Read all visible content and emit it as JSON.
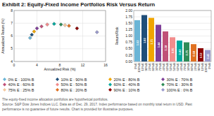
{
  "chart_data": [
    {
      "type": "scatter",
      "title": "Exhibit 2: Equity-Fixed Income Portfolios Risk Versus Return",
      "xlabel": "Annualized Risk (%)",
      "ylabel": "Annualized Return (%)",
      "xlim": [
        0,
        16
      ],
      "ylim": [
        4,
        8
      ],
      "xticks": [
        0,
        4,
        8,
        12,
        16
      ],
      "yticks": [
        4,
        5,
        6,
        7,
        8
      ],
      "grid": true,
      "legend": "bottom",
      "marker": "diamond",
      "series": [
        {
          "name": "0% E : 100% B",
          "color": "#6bb5d6",
          "x": [
            2.8
          ],
          "values": [
            5.85
          ]
        },
        {
          "name": "10% E : 90% B",
          "color": "#1f4e79",
          "x": [
            3.1
          ],
          "values": [
            6.1
          ]
        },
        {
          "name": "20% E : 80% B",
          "color": "#f0a500",
          "x": [
            3.5
          ],
          "values": [
            6.35
          ]
        },
        {
          "name": "30% E : 70% B",
          "color": "#7f3f98",
          "x": [
            4.0
          ],
          "values": [
            6.6
          ]
        },
        {
          "name": "40% E : 60% B",
          "color": "#c05078",
          "x": [
            4.8
          ],
          "values": [
            6.75
          ]
        },
        {
          "name": "50% E : 50% B",
          "color": "#f28c8c",
          "x": [
            5.8
          ],
          "values": [
            6.9
          ]
        },
        {
          "name": "60% E : 40% B",
          "color": "#00a89d",
          "x": [
            7.0
          ],
          "values": [
            6.95
          ]
        },
        {
          "name": "70% E : 30% B",
          "color": "#2e8b57",
          "x": [
            8.2
          ],
          "values": [
            6.9
          ]
        },
        {
          "name": "75% E : 25% B",
          "color": "#f4c8a0",
          "x": [
            8.9
          ],
          "values": [
            6.85
          ]
        },
        {
          "name": "80% E : 20% B",
          "color": "#e07020",
          "x": [
            9.6
          ],
          "values": [
            6.8
          ]
        },
        {
          "name": "90% E : 10% B",
          "color": "#8b0000",
          "x": [
            11.0
          ],
          "values": [
            6.6
          ]
        },
        {
          "name": "100% E : 0% B",
          "color": "#9999cc",
          "x": [
            14.5
          ],
          "values": [
            6.3
          ]
        }
      ],
      "annotations": [
        "The equity-fixed income allocation portfolios are hypothetical portfolios.",
        "Source: S&P Dow Jones Indices LLC. Data as of Dec. 29, 2017. Index performance based on monthly total return in USD. Past",
        "performance is no guarantee of future results. Chart is provided for illustrative purposes."
      ]
    },
    {
      "type": "bar",
      "ylabel": "Return/Risk",
      "categories": [
        "0%E\n100%B",
        "10%E\n90%B",
        "20%E\n80%B",
        "30%E\n70%B",
        "40%E\n60%B",
        "50%E\n50%B",
        "60%E\n40%B",
        "70%E\n30%B",
        "80%E\n20%B",
        "90%E\n10%B",
        "100%E\n0%B"
      ],
      "values": [
        1.62,
        1.82,
        1.71,
        1.44,
        1.18,
        0.95,
        0.82,
        0.75,
        0.68,
        0.52,
        0.45
      ],
      "colors": [
        "#6bb5d6",
        "#1f4e79",
        "#f0a500",
        "#7f3f98",
        "#c05078",
        "#f28c8c",
        "#00a89d",
        "#2e8b57",
        "#e07020",
        "#8b0000",
        "#9999cc"
      ],
      "ylim": [
        0.0,
        2.0
      ],
      "yticks": [
        {
          "value": 0.0,
          "label": "0.00"
        },
        {
          "value": 0.25,
          "label": "0.25"
        },
        {
          "value": 0.5,
          "label": "0.50"
        },
        {
          "value": 0.75,
          "label": "0.75"
        },
        {
          "value": 1.0,
          "label": "1.00"
        },
        {
          "value": 1.25,
          "label": "1.25"
        },
        {
          "value": 1.5,
          "label": "1.50"
        },
        {
          "value": 1.75,
          "label": "1.75"
        },
        {
          "value": 2.0,
          "label": "2.00"
        }
      ],
      "grid": "y",
      "data_labels": true
    }
  ]
}
